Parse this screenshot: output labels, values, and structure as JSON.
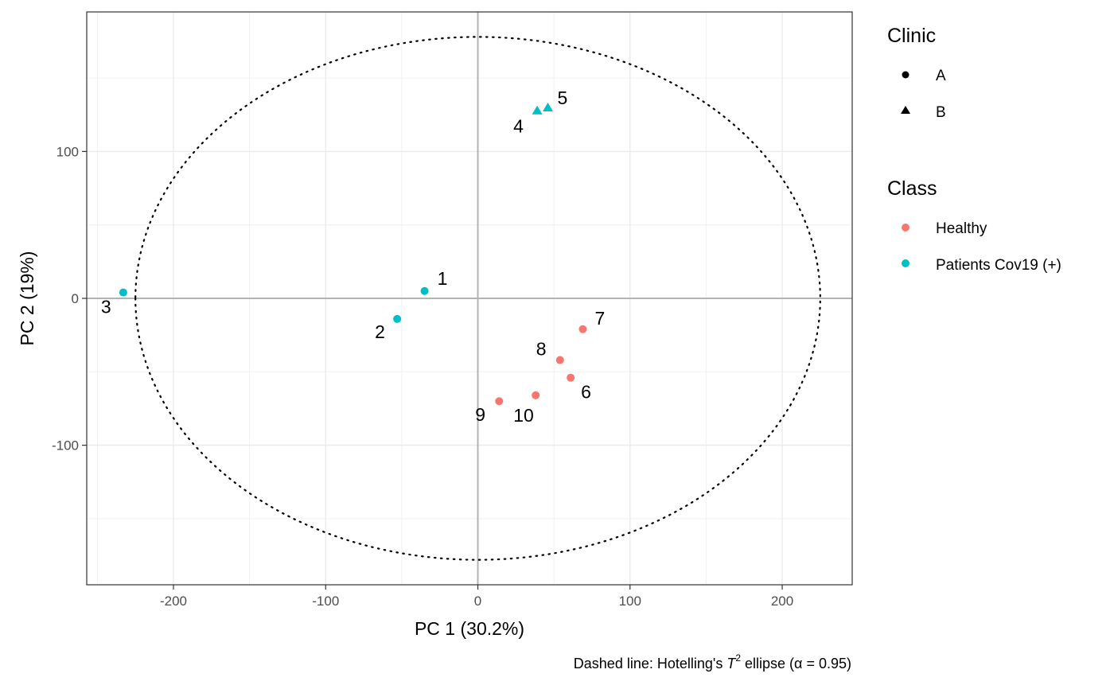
{
  "chart_data": {
    "type": "scatter",
    "xlabel": "PC 1 (30.2%)",
    "ylabel": "PC 2 (19%)",
    "xlim": [
      -257,
      246
    ],
    "ylim": [
      -195,
      195
    ],
    "x_ticks": [
      -200,
      -100,
      0,
      100,
      200
    ],
    "y_ticks": [
      -100,
      0,
      100
    ],
    "x_tick_labels": [
      "-200",
      "-100",
      "0",
      "100",
      "200"
    ],
    "y_tick_labels": [
      "-100",
      "0",
      "100"
    ],
    "grid": true,
    "zero_lines": true,
    "ellipse": {
      "rx": 225,
      "ry": 178,
      "center": [
        0,
        0
      ],
      "style": "dotted"
    },
    "caption": {
      "pre": "Dashed line: Hotelling's ",
      "sym": "T",
      "sup": "2",
      "mid": " ellipse (",
      "alpha": "α",
      "post": " = 0.95)"
    },
    "legend_position": "right",
    "legends": [
      {
        "title": "Clinic",
        "kind": "shape",
        "items": [
          {
            "label": "A",
            "shape": "circle"
          },
          {
            "label": "B",
            "shape": "triangle"
          }
        ]
      },
      {
        "title": "Class",
        "kind": "color",
        "items": [
          {
            "label": "Healthy",
            "color": "#F8766D"
          },
          {
            "label": "Patients Cov19 (+)",
            "color": "#00BFC4"
          }
        ]
      }
    ],
    "points": [
      {
        "label": "1",
        "x": -35,
        "y": 5,
        "clinic": "A",
        "class": "Patients Cov19 (+)"
      },
      {
        "label": "2",
        "x": -53,
        "y": -14,
        "clinic": "A",
        "class": "Patients Cov19 (+)"
      },
      {
        "label": "3",
        "x": -233,
        "y": 4,
        "clinic": "A",
        "class": "Patients Cov19 (+)"
      },
      {
        "label": "4",
        "x": 39,
        "y": 128,
        "clinic": "B",
        "class": "Patients Cov19 (+)"
      },
      {
        "label": "5",
        "x": 46,
        "y": 130,
        "clinic": "B",
        "class": "Patients Cov19 (+)"
      },
      {
        "label": "6",
        "x": 61,
        "y": -54,
        "clinic": "A",
        "class": "Healthy"
      },
      {
        "label": "7",
        "x": 69,
        "y": -21,
        "clinic": "A",
        "class": "Healthy"
      },
      {
        "label": "8",
        "x": 54,
        "y": -42,
        "clinic": "A",
        "class": "Healthy"
      },
      {
        "label": "9",
        "x": 14,
        "y": -70,
        "clinic": "A",
        "class": "Healthy"
      },
      {
        "label": "10",
        "x": 38,
        "y": -66,
        "clinic": "A",
        "class": "Healthy"
      }
    ]
  }
}
